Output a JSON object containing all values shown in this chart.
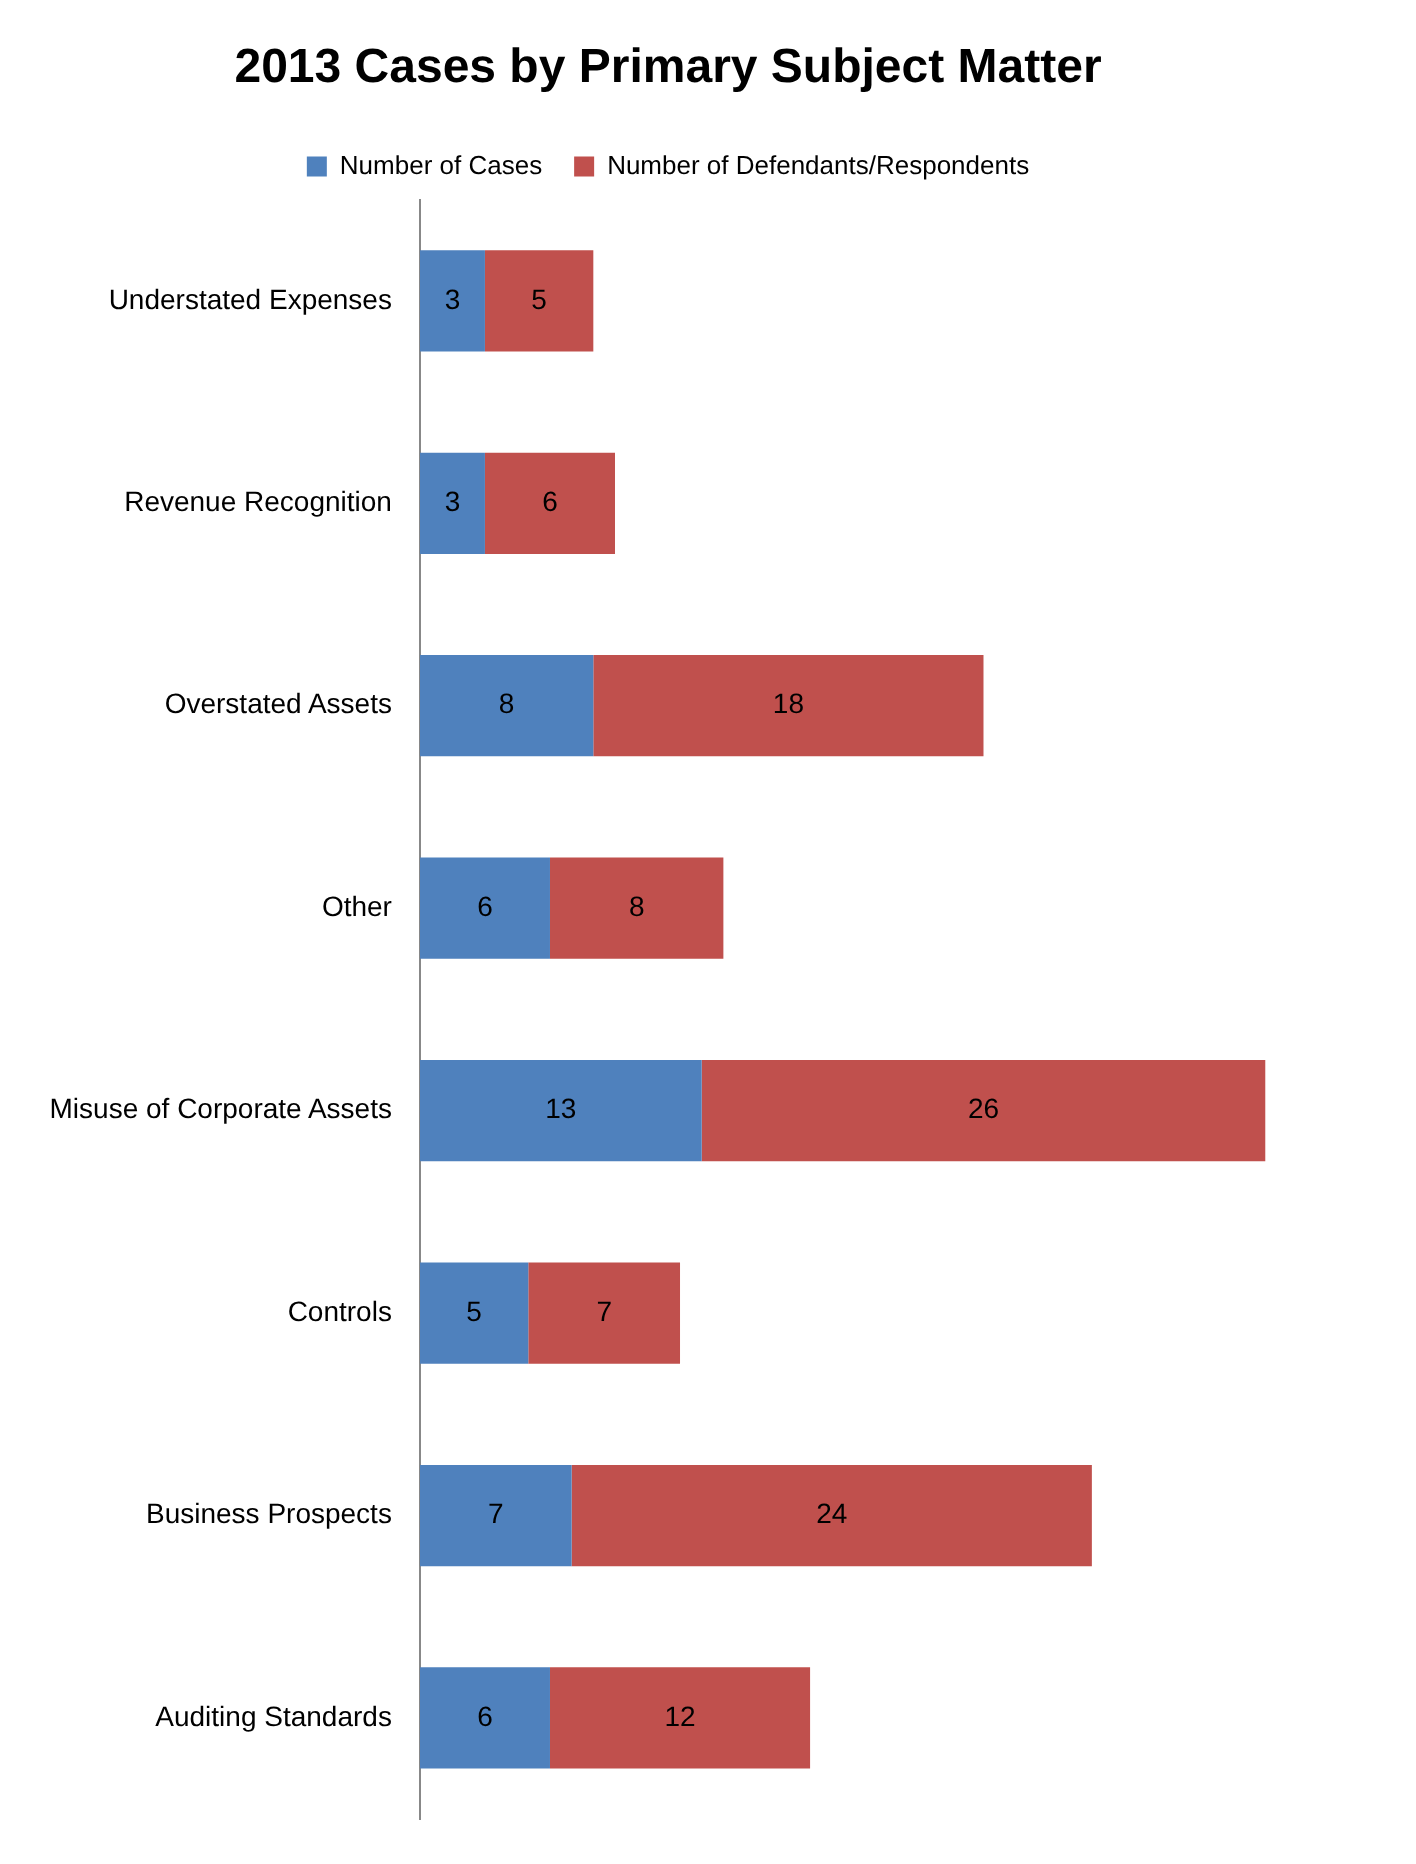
{
  "chart_data": {
    "type": "bar",
    "orientation": "horizontal",
    "stacked": true,
    "title": "2013 Cases by Primary Subject Matter",
    "categories": [
      "Understated Expenses",
      "Revenue Recognition",
      "Overstated Assets",
      "Other",
      "Misuse of Corporate Assets",
      "Controls",
      "Business Prospects",
      "Auditing Standards"
    ],
    "series": [
      {
        "name": "Number of Cases",
        "color": "#4f81bd",
        "values": [
          3,
          3,
          8,
          6,
          13,
          5,
          7,
          6
        ]
      },
      {
        "name": "Number of Defendants/Respondents",
        "color": "#c0504d",
        "values": [
          5,
          6,
          18,
          8,
          26,
          7,
          24,
          12
        ]
      }
    ],
    "data_labels": true,
    "legend": "top",
    "tick_labels": "y"
  }
}
